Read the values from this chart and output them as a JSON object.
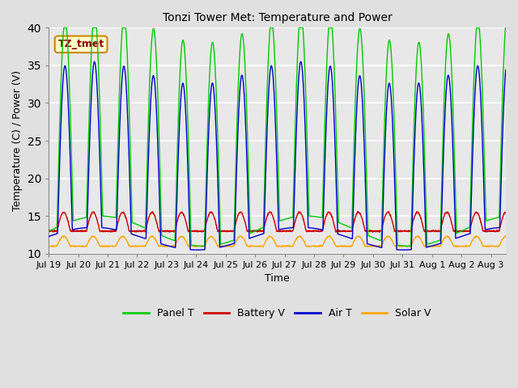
{
  "title": "Tonzi Tower Met: Temperature and Power",
  "xlabel": "Time",
  "ylabel": "Temperature (C) / Power (V)",
  "ylim": [
    10,
    40
  ],
  "tick_labels": [
    "Jul 19",
    "Jul 20",
    "Jul 21",
    "Jul 22",
    "Jul 23",
    "Jul 24",
    "Jul 25",
    "Jul 26",
    "Jul 27",
    "Jul 28",
    "Jul 29",
    "Jul 30",
    "Jul 31",
    "Aug 1",
    "Aug 2",
    "Aug 3"
  ],
  "tick_positions": [
    0,
    1,
    2,
    3,
    4,
    5,
    6,
    7,
    8,
    9,
    10,
    11,
    12,
    13,
    14,
    15
  ],
  "color_panel": "#00CC00",
  "color_battery": "#CC0000",
  "color_air": "#0000CC",
  "color_solar": "#FFA500",
  "fig_bg_color": "#E0E0E0",
  "plot_bg_color": "#E8E8E8",
  "legend_labels": [
    "Panel T",
    "Battery V",
    "Air T",
    "Solar V"
  ],
  "annotation_text": "TZ_tmet",
  "yticks": [
    10,
    15,
    20,
    25,
    30,
    35,
    40
  ],
  "days": 15.5,
  "n_points": 2000,
  "panel_base": 13.0,
  "panel_amp": 27.0,
  "air_base": 12.0,
  "air_amp": 22.0,
  "battery_base": 13.0,
  "battery_amp": 2.5,
  "solar_base": 11.0,
  "solar_amp": 1.3,
  "phase_shift": 0.25,
  "title_fontsize": 10,
  "axis_fontsize": 9,
  "tick_fontsize": 8,
  "legend_fontsize": 9
}
